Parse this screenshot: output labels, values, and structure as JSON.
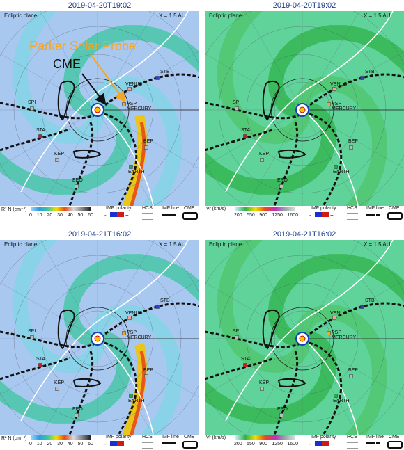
{
  "panels": [
    {
      "timestamp": "2019-04-20T19:02",
      "plane_label": "Ecliptic plane",
      "scale_label": "X = 1.5 AU",
      "quantity": "density",
      "legend": {
        "title": "R² N (cm⁻³)",
        "ticks": [
          "0",
          "10",
          "20",
          "30",
          "40",
          "50",
          "60"
        ],
        "imf_polarity": "IMF polarity",
        "hcs": "HCS",
        "imf_line": "IMF line",
        "cme": "CME",
        "minus": "-",
        "plus": "+"
      }
    },
    {
      "timestamp": "2019-04-20T19:02",
      "plane_label": "Ecliptic plane",
      "scale_label": "X = 1.5 AU",
      "quantity": "velocity",
      "legend": {
        "title": "Vr (km/s)",
        "ticks": [
          "200",
          "550",
          "900",
          "1250",
          "1600"
        ],
        "imf_polarity": "IMF polarity",
        "hcs": "HCS",
        "imf_line": "IMF line",
        "cme": "CME",
        "minus": "-",
        "plus": "+"
      }
    },
    {
      "timestamp": "2019-04-21T16:02",
      "plane_label": "Ecliptic plane",
      "scale_label": "X = 1.5 AU",
      "quantity": "density",
      "legend": {
        "title": "R² N (cm⁻³)",
        "ticks": [
          "0",
          "10",
          "20",
          "30",
          "40",
          "50",
          "60"
        ],
        "imf_polarity": "IMF polarity",
        "hcs": "HCS",
        "imf_line": "IMF line",
        "cme": "CME",
        "minus": "-",
        "plus": "+"
      }
    },
    {
      "timestamp": "2019-04-21T16:02",
      "plane_label": "Ecliptic plane",
      "scale_label": "X = 1.5 AU",
      "quantity": "velocity",
      "legend": {
        "title": "Vr (km/s)",
        "ticks": [
          "200",
          "550",
          "900",
          "1250",
          "1600"
        ],
        "imf_polarity": "IMF polarity",
        "hcs": "HCS",
        "imf_line": "IMF line",
        "cme": "CME",
        "minus": "-",
        "plus": "+"
      }
    }
  ],
  "bodies": {
    "stb": "STB",
    "venus": "VENUS",
    "psp": "PSP",
    "mercury": "MERCURY",
    "spi": "SPI",
    "sta": "STA",
    "kep": "KEP",
    "epo": "EPO",
    "bep": "BEP",
    "earth": "EARTH"
  },
  "annotations": {
    "probe_label": "Parker Solar Probe",
    "cme_label": "CME"
  },
  "colors": {
    "density_bg": "#a9c8f0",
    "velocity_bg": "#5fd39a",
    "probe_label": "#f5a623",
    "cme_arrow": "#111111"
  }
}
